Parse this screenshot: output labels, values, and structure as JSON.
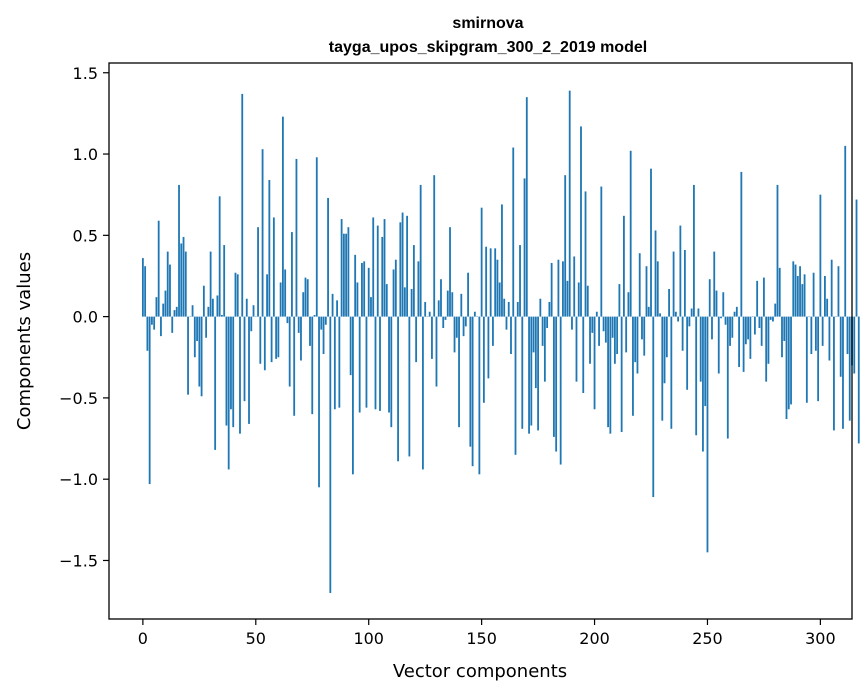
{
  "chart_data": {
    "type": "bar",
    "title": "smirnova",
    "subtitle": "tayga_upos_skipgram_300_2_2019 model",
    "xlabel": "Vector components",
    "ylabel": "Components values",
    "xlim": [
      -15,
      314
    ],
    "ylim": [
      -1.86,
      1.56
    ],
    "xticks": [
      0,
      50,
      100,
      150,
      200,
      250,
      300
    ],
    "yticks": [
      -1.5,
      -1.0,
      -0.5,
      0.0,
      0.5,
      1.0,
      1.5
    ],
    "xtick_labels": [
      "0",
      "50",
      "100",
      "150",
      "200",
      "250",
      "300"
    ],
    "ytick_labels": [
      "−1.5",
      "−1.0",
      "−0.5",
      "0.0",
      "0.5",
      "1.0",
      "1.5"
    ],
    "grid": false,
    "bar_color": "#1f77b4",
    "x_start": 0,
    "values": [
      0.36,
      0.31,
      -0.21,
      -1.03,
      -0.05,
      -0.08,
      0.12,
      0.59,
      -0.12,
      0.08,
      0.16,
      0.4,
      0.32,
      -0.1,
      0.04,
      0.06,
      0.81,
      0.45,
      0.49,
      0.4,
      -0.48,
      0.0,
      0.07,
      -0.25,
      -0.15,
      -0.43,
      -0.49,
      0.19,
      -0.13,
      0.06,
      0.4,
      0.11,
      -0.82,
      0.13,
      0.74,
      0.01,
      0.44,
      -0.67,
      -0.94,
      -0.57,
      -0.68,
      0.27,
      0.26,
      -0.72,
      1.37,
      -0.52,
      0.11,
      -0.66,
      -0.09,
      0.07,
      0.0,
      0.55,
      -0.29,
      1.03,
      -0.33,
      0.26,
      0.84,
      -0.28,
      0.61,
      -0.26,
      -0.25,
      0.21,
      1.23,
      0.29,
      -0.04,
      -0.43,
      0.52,
      -0.61,
      0.97,
      -0.1,
      -0.27,
      0.15,
      0.24,
      0.23,
      -0.18,
      -0.6,
      0.01,
      0.98,
      -1.05,
      -0.08,
      -0.23,
      -0.05,
      0.73,
      -1.7,
      0.14,
      -0.57,
      0.1,
      -0.56,
      0.6,
      0.51,
      0.51,
      0.55,
      -0.36,
      -0.97,
      0.38,
      0.21,
      -0.59,
      0.33,
      0.34,
      -0.56,
      0.3,
      0.12,
      0.61,
      -0.57,
      0.56,
      -0.58,
      0.49,
      0.6,
      0.2,
      -0.59,
      -0.68,
      0.29,
      0.35,
      -0.89,
      0.58,
      0.64,
      0.18,
      0.62,
      -0.86,
      0.17,
      0.44,
      -0.28,
      0.34,
      0.81,
      -0.94,
      0.09,
      0.0,
      0.03,
      -0.26,
      0.87,
      -0.43,
      0.1,
      0.23,
      -0.07,
      -0.02,
      0.16,
      0.55,
      0.15,
      -0.22,
      -0.13,
      -0.68,
      0.14,
      -0.12,
      -0.06,
      0.27,
      -0.8,
      -0.92,
      0.03,
      0.0,
      -0.97,
      0.67,
      -0.53,
      0.43,
      -0.38,
      0.42,
      -0.18,
      0.42,
      0.35,
      0.21,
      0.69,
      0.11,
      -0.08,
      0.09,
      -0.23,
      1.04,
      -0.85,
      0.09,
      0.44,
      -0.69,
      0.85,
      1.35,
      -0.72,
      -0.67,
      -0.22,
      -0.44,
      -0.7,
      0.11,
      -0.18,
      -0.4,
      -0.07,
      0.09,
      0.33,
      -0.74,
      -0.83,
      0.35,
      -0.91,
      0.34,
      0.87,
      0.22,
      1.39,
      -0.08,
      0.37,
      -0.4,
      0.21,
      1.17,
      -0.47,
      0.77,
      0.19,
      -0.29,
      -0.1,
      -0.57,
      0.03,
      -0.18,
      0.8,
      -0.09,
      -0.16,
      -0.68,
      -0.72,
      -0.13,
      -0.29,
      -0.23,
      0.2,
      -0.71,
      0.62,
      -0.22,
      0.15,
      1.02,
      -0.61,
      -0.28,
      -0.35,
      0.39,
      -0.14,
      -0.24,
      0.31,
      0.06,
      0.91,
      -1.11,
      0.53,
      0.34,
      0.02,
      -0.64,
      -0.41,
      -0.25,
      0.17,
      -0.69,
      0.4,
      0.03,
      -0.03,
      0.56,
      -0.21,
      0.41,
      -0.45,
      -0.06,
      0.05,
      0.81,
      -0.73,
      0.05,
      -0.4,
      -0.83,
      -0.55,
      -1.45,
      0.23,
      -0.14,
      0.4,
      0.16,
      -0.35,
      -0.01,
      0.15,
      -0.05,
      -0.75,
      -0.18,
      -0.13,
      0.03,
      0.06,
      -0.31,
      0.89,
      -0.34,
      -0.17,
      -0.14,
      -0.26,
      0.0,
      -0.11,
      0.22,
      -0.07,
      -0.18,
      0.24,
      -0.4,
      -0.29,
      -0.02,
      -0.03,
      0.08,
      0.81,
      0.3,
      -0.25,
      -0.15,
      -0.63,
      -0.57,
      -0.54,
      0.34,
      0.32,
      0.25,
      0.31,
      0.2,
      0.26,
      -0.53,
      0.0,
      -0.23,
      0.27,
      -0.21,
      -0.52,
      0.75,
      -0.18,
      0.25,
      0.11,
      -0.27,
      0.35,
      -0.7,
      0.0,
      0.31,
      -0.37,
      -0.69,
      1.05,
      -0.23,
      -0.64,
      -0.3,
      -0.35,
      0.72,
      -0.78
    ]
  }
}
